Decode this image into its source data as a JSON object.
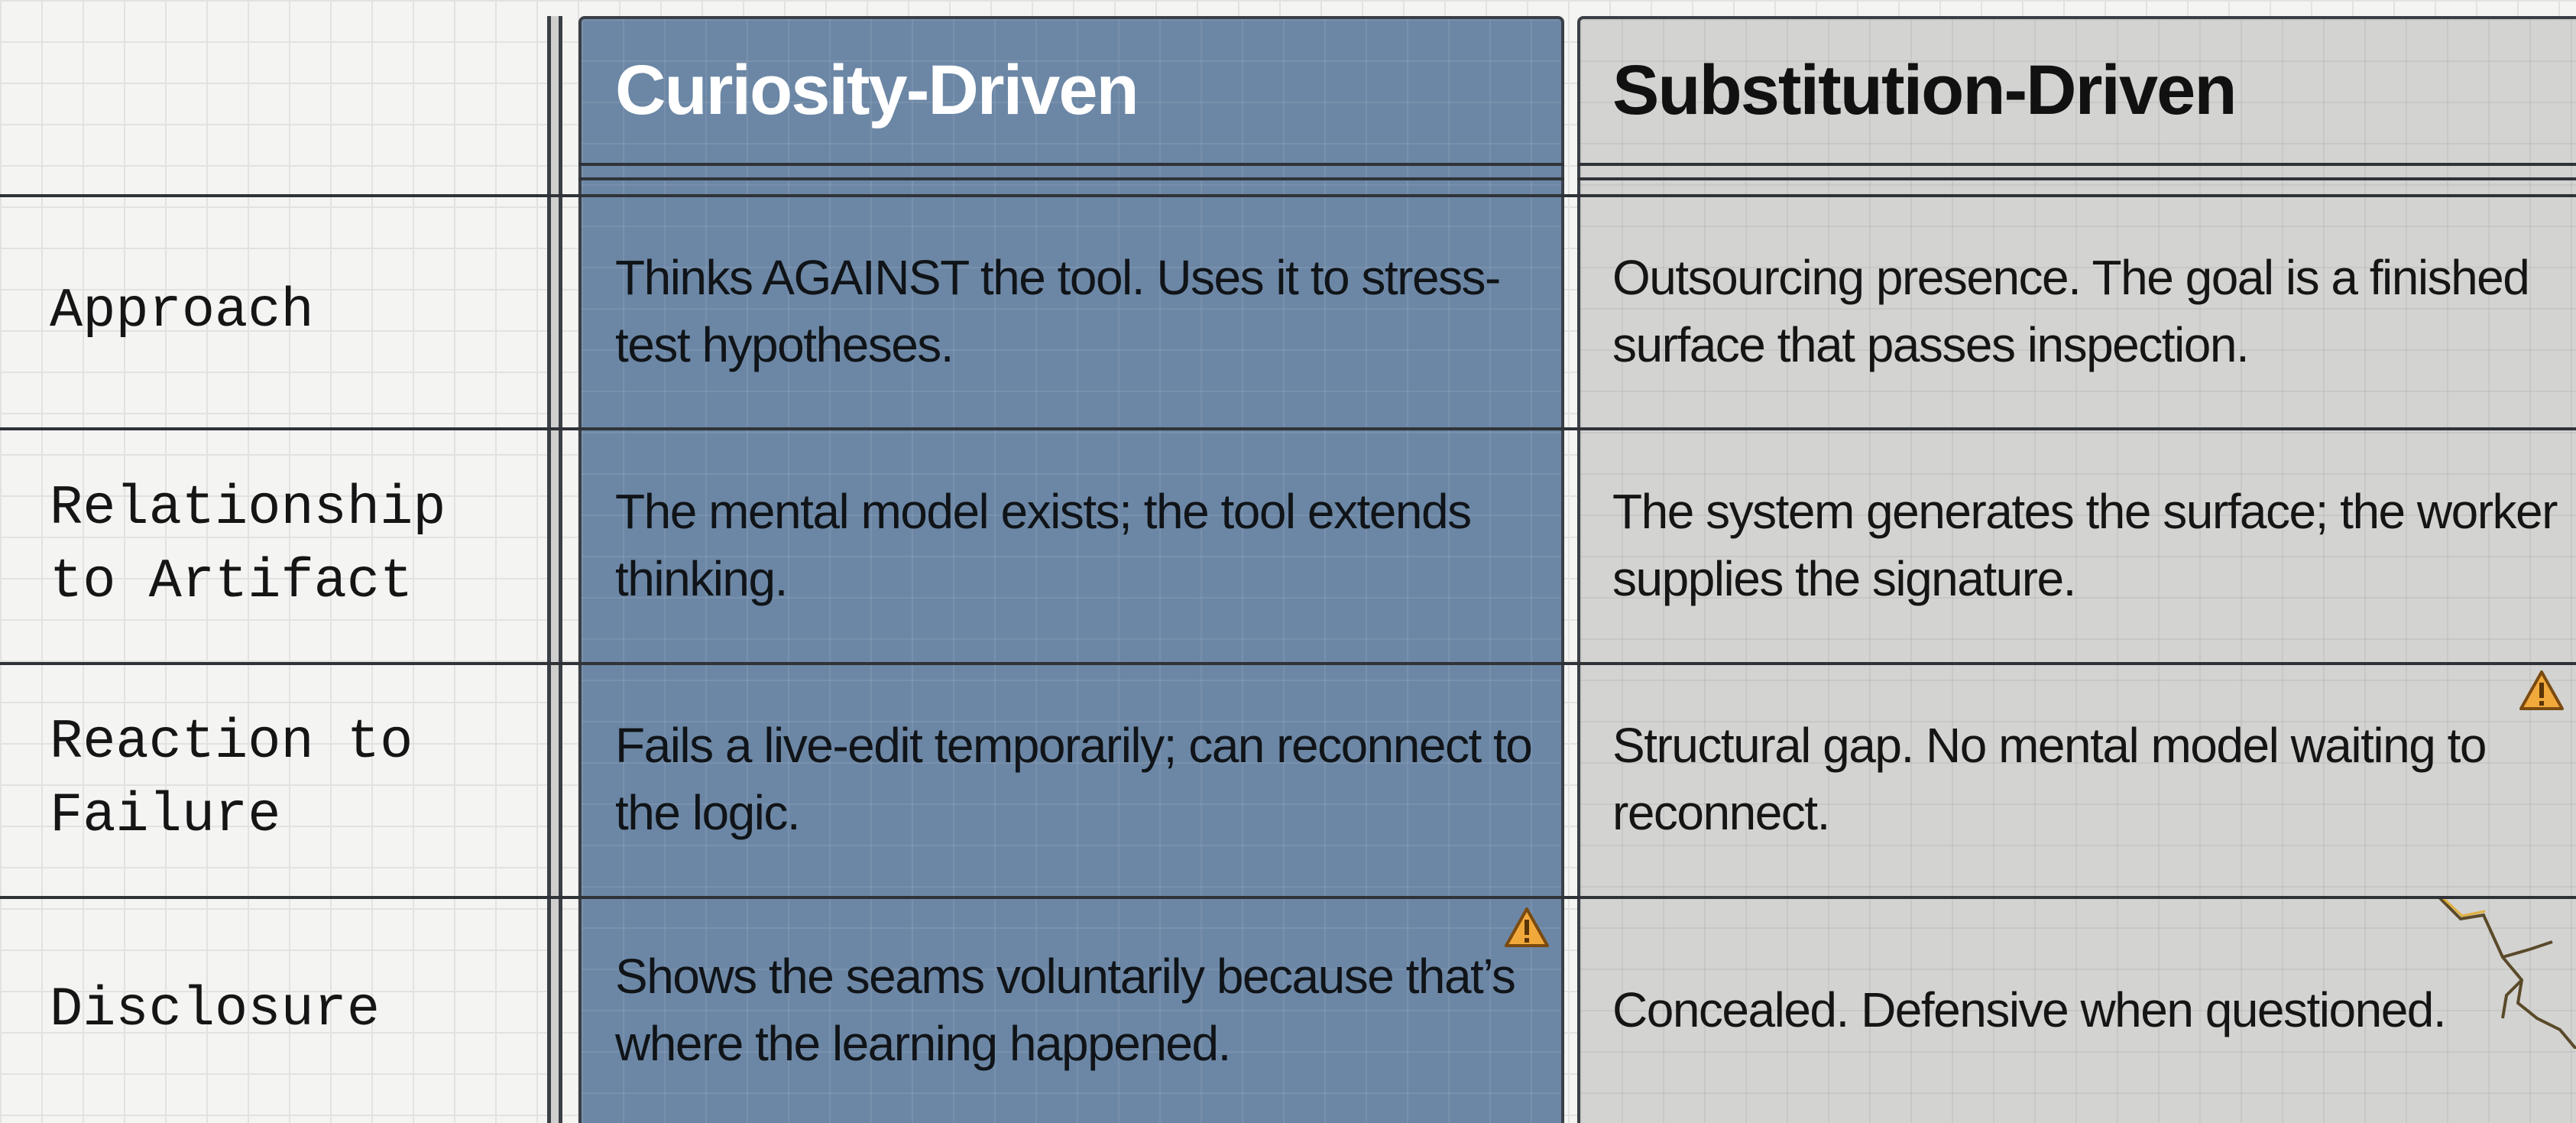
{
  "header": {
    "columns": [
      "Curiosity-Driven",
      "Substitution-Driven"
    ]
  },
  "rows": [
    {
      "label": "Approach",
      "curiosity": "Thinks AGAINST the tool. Uses it to stress-test hypotheses.",
      "substitution": "Outsourcing presence. The goal is a finished surface that passes inspection."
    },
    {
      "label": "Relationship to Artifact",
      "curiosity": "The mental model exists; the tool extends thinking.",
      "substitution": "The system generates the surface; the worker supplies the signature."
    },
    {
      "label": "Reaction to Failure",
      "curiosity": "Fails a live-edit temporarily; can reconnect to the logic.",
      "substitution": "Structural gap. No mental model waiting to reconnect."
    },
    {
      "label": "Disclosure",
      "curiosity": "Shows the seams voluntarily because that’s where the learning happened.",
      "substitution": "Concealed. Defensive when questioned."
    }
  ]
}
